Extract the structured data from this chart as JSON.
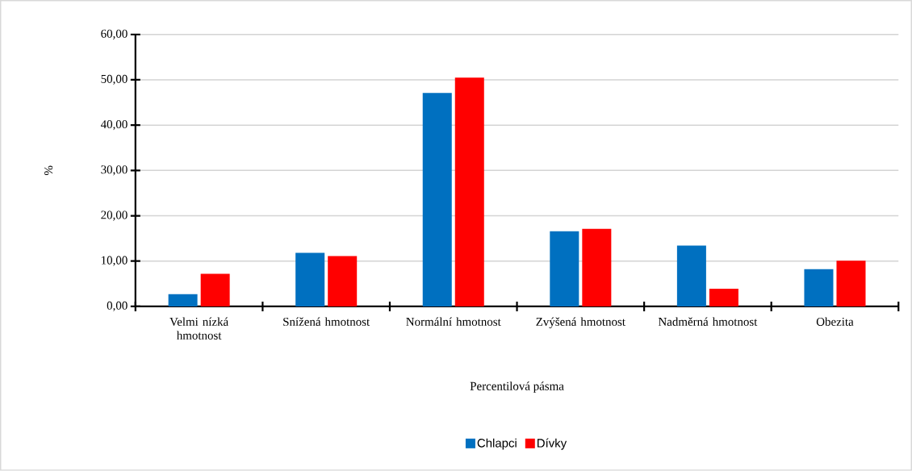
{
  "chart_data": {
    "type": "bar",
    "xlabel": "Percentilová pásma",
    "ylabel": "%",
    "categories": [
      "Velmi nízká hmotnost",
      "Snížená hmotnost",
      "Normální hmotnost",
      "Zvýšená hmotnost",
      "Nadměrná hmotnost",
      "Obezita"
    ],
    "series": [
      {
        "name": "Chlapci",
        "color": "#0070c0",
        "values": [
          2.7,
          11.8,
          47.1,
          16.6,
          13.4,
          8.2
        ]
      },
      {
        "name": "Dívky",
        "color": "#ff0000",
        "values": [
          7.2,
          11.1,
          50.5,
          17.1,
          3.9,
          10.1
        ]
      }
    ],
    "ylim": [
      0,
      60
    ],
    "yticks": [
      {
        "value": 0,
        "label": "0,00"
      },
      {
        "value": 10,
        "label": "10,00"
      },
      {
        "value": 20,
        "label": "20,00"
      },
      {
        "value": 30,
        "label": "30,00"
      },
      {
        "value": 40,
        "label": "40,00"
      },
      {
        "value": 50,
        "label": "50,00"
      },
      {
        "value": 60,
        "label": "60,00"
      }
    ],
    "grid": "y",
    "legend": "bottom"
  }
}
